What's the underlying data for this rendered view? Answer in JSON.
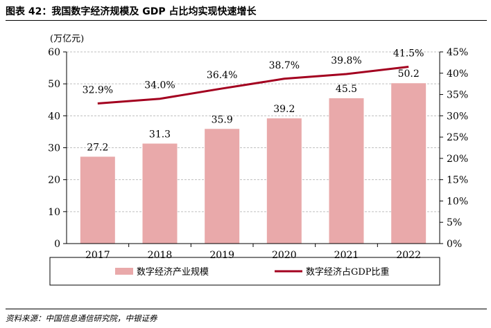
{
  "title": "图表 42：我国数字经济规模及 GDP 占比均实现快速增长",
  "source": "资料来源：中国信息通信研究院，中银证券",
  "chart_data": {
    "type": "bar",
    "categories": [
      "2017",
      "2018",
      "2019",
      "2020",
      "2021",
      "2022"
    ],
    "series": [
      {
        "name": "数字经济产业规模",
        "type": "bar",
        "axis": "left",
        "values": [
          27.2,
          31.3,
          35.9,
          39.2,
          45.5,
          50.2
        ],
        "labels": [
          "27.2",
          "31.3",
          "35.9",
          "39.2",
          "45.5",
          "50.2"
        ],
        "color": "#e9a9aa"
      },
      {
        "name": "数字经济占GDP比重",
        "type": "line",
        "axis": "right",
        "values": [
          32.9,
          34.0,
          36.4,
          38.7,
          39.8,
          41.5
        ],
        "labels": [
          "32.9%",
          "34.0%",
          "36.4%",
          "38.7%",
          "39.8%",
          "41.5%"
        ],
        "color": "#a3001f"
      }
    ],
    "y_left": {
      "unit_label": "(万亿元)",
      "range": [
        0,
        60
      ],
      "ticks": [
        "0",
        "10",
        "20",
        "30",
        "40",
        "50",
        "60"
      ]
    },
    "y_right": {
      "range": [
        0,
        45
      ],
      "ticks": [
        "0%",
        "5%",
        "10%",
        "15%",
        "20%",
        "25%",
        "30%",
        "35%",
        "40%",
        "45%"
      ]
    },
    "legend_position": "bottom"
  }
}
